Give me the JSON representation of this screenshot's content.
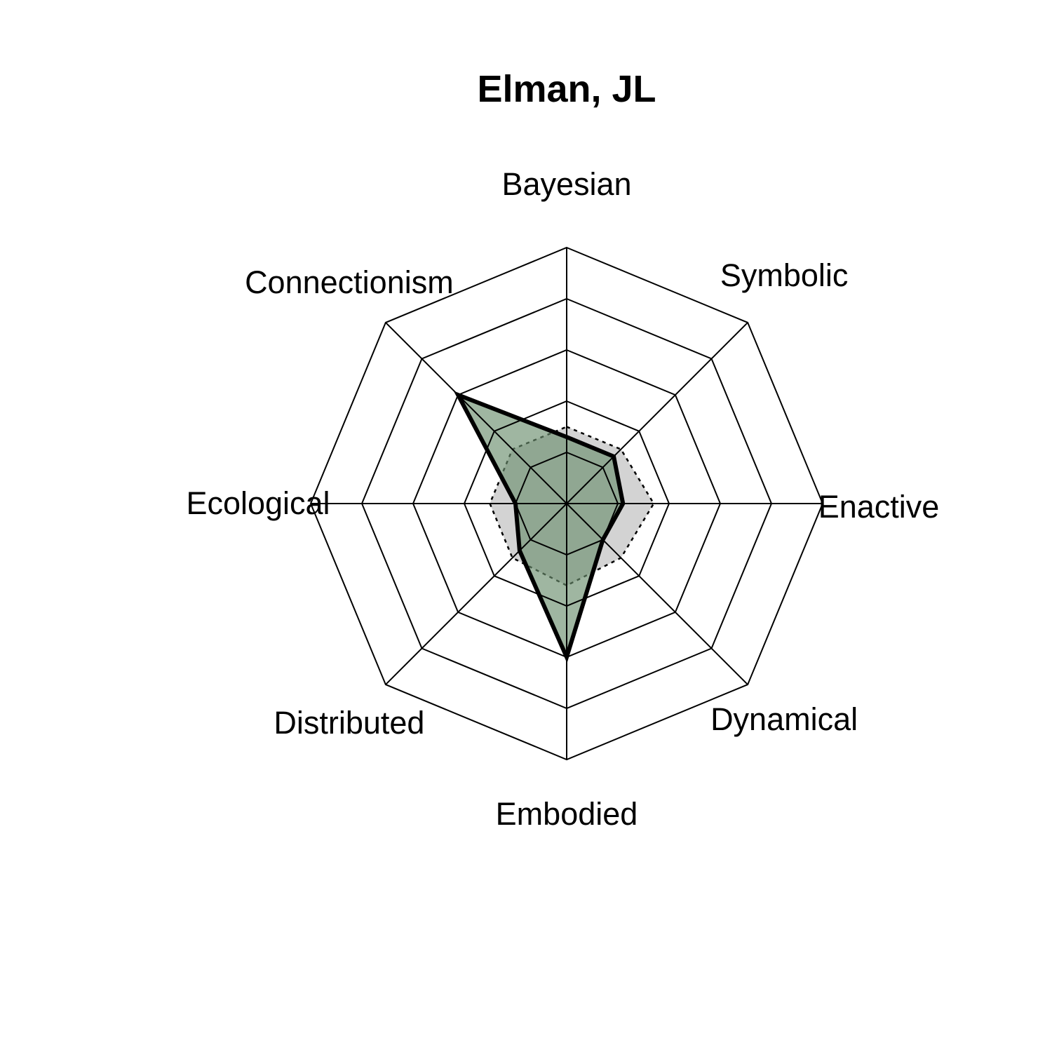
{
  "chart_data": {
    "type": "radar",
    "title": "Elman, JL",
    "axes": [
      "Bayesian",
      "Symbolic",
      "Enactive",
      "Dynamical",
      "Embodied",
      "Distributed",
      "Ecological",
      "Connectionism"
    ],
    "rmax": 5,
    "grid_levels": [
      1,
      2,
      3,
      4,
      5
    ],
    "series": [
      {
        "values": [
          1.3,
          1.3,
          1.1,
          1.0,
          3.0,
          1.3,
          1.0,
          3.0
        ],
        "fill": "#6b8f6e",
        "fill_opacity": 0.65,
        "stroke": "#000000"
      }
    ],
    "reference": {
      "values": [
        1.5,
        1.5,
        1.7,
        1.5,
        1.6,
        1.5,
        1.5,
        1.5
      ],
      "fill": "#d3d3d3",
      "stroke": "#000000"
    }
  }
}
